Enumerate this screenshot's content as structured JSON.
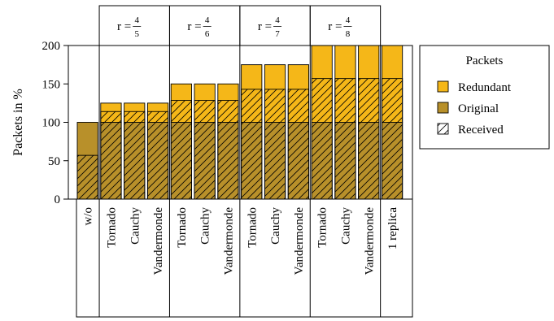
{
  "chart_data": {
    "type": "bar",
    "stacked": true,
    "ylabel": "Packets in %",
    "ylim": [
      0,
      200
    ],
    "yticks": [
      0,
      50,
      100,
      150,
      200
    ],
    "groups": [
      {
        "header": "",
        "categories": [
          "w/o"
        ]
      },
      {
        "header": {
          "prefix": "r = ",
          "num": "4",
          "den": "5"
        },
        "categories": [
          "Tornado",
          "Cauchy",
          "Vandermonde"
        ]
      },
      {
        "header": {
          "prefix": "r = ",
          "num": "4",
          "den": "6"
        },
        "categories": [
          "Tornado",
          "Cauchy",
          "Vandermonde"
        ]
      },
      {
        "header": {
          "prefix": "r = ",
          "num": "4",
          "den": "7"
        },
        "categories": [
          "Tornado",
          "Cauchy",
          "Vandermonde"
        ]
      },
      {
        "header": {
          "prefix": "r = ",
          "num": "4",
          "den": "8"
        },
        "categories": [
          "Tornado",
          "Cauchy",
          "Vandermonde"
        ]
      },
      {
        "header": "",
        "categories": [
          "1 replica"
        ]
      }
    ],
    "series": [
      {
        "name": "Original",
        "color": "#b8902a",
        "values": [
          100,
          100,
          100,
          100,
          100,
          100,
          100,
          100,
          100,
          100,
          100,
          100,
          100,
          100
        ]
      },
      {
        "name": "Redundant",
        "color": "#f5b718",
        "values": [
          0,
          25,
          25,
          25,
          50,
          50,
          50,
          75,
          75,
          75,
          100,
          100,
          100,
          100
        ]
      }
    ],
    "received": [
      57,
      114,
      114,
      114,
      128.5,
      128.5,
      128.5,
      143,
      143,
      143,
      157,
      157,
      157,
      157
    ],
    "legend": {
      "title": "Packets",
      "entries": [
        {
          "label": "Redundant",
          "swatch": "redundant"
        },
        {
          "label": "Original",
          "swatch": "original"
        },
        {
          "label": "Received",
          "swatch": "received"
        }
      ],
      "placement": "right"
    },
    "grid": false
  }
}
